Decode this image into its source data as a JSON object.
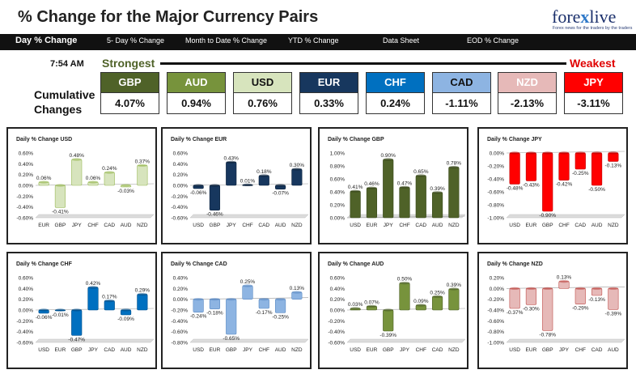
{
  "header": {
    "title": "% Change for the Major Currency Pairs",
    "logo_a": "fore",
    "logo_x": "x",
    "logo_b": "live",
    "logo_tagline": "Forex news for the traders by the traders"
  },
  "nav": {
    "items": [
      "Day % Change",
      "5- Day % Change",
      "Month to Date % Change",
      "YTD % Change",
      "Data Sheet",
      "EOD % Change"
    ]
  },
  "summary": {
    "time": "7:54 AM",
    "strongest": "Strongest",
    "weakest": "Weakest",
    "cumulative_label_1": "Cumulative",
    "cumulative_label_2": "Changes",
    "currencies": [
      {
        "name": "GBP",
        "value": "4.07%",
        "bg": "#4f6228",
        "fg": "#ffffff"
      },
      {
        "name": "AUD",
        "value": "0.94%",
        "bg": "#77933c",
        "fg": "#ffffff"
      },
      {
        "name": "USD",
        "value": "0.76%",
        "bg": "#d7e4bd",
        "fg": "#111111"
      },
      {
        "name": "EUR",
        "value": "0.33%",
        "bg": "#17375e",
        "fg": "#ffffff"
      },
      {
        "name": "CHF",
        "value": "0.24%",
        "bg": "#0070c0",
        "fg": "#ffffff"
      },
      {
        "name": "CAD",
        "value": "-1.11%",
        "bg": "#8db4e2",
        "fg": "#111111"
      },
      {
        "name": "NZD",
        "value": "-2.13%",
        "bg": "#e6b9b8",
        "fg": "#ffffff"
      },
      {
        "name": "JPY",
        "value": "-3.11%",
        "bg": "#ff0000",
        "fg": "#ffffff"
      }
    ]
  },
  "chart_data": [
    {
      "type": "bar",
      "title": "Daily % Change USD",
      "categories": [
        "EUR",
        "GBP",
        "JPY",
        "CHF",
        "CAD",
        "AUD",
        "NZD"
      ],
      "values": [
        0.06,
        -0.41,
        0.48,
        0.06,
        0.24,
        -0.03,
        0.37
      ],
      "ylim": [
        -0.6,
        0.6
      ],
      "yticks": [
        "0.60%",
        "0.40%",
        "0.20%",
        "0.00%",
        "-0.20%",
        "-0.40%",
        "-0.60%"
      ],
      "labels": [
        "0.06%",
        "-0.41%",
        "0.48%",
        "0.06%",
        "0.24%",
        "-0.03%",
        "0.37%"
      ],
      "color": "#d7e4bd",
      "stroke": "#9bbb59"
    },
    {
      "type": "bar",
      "title": "Daily % Change EUR",
      "categories": [
        "USD",
        "GBP",
        "JPY",
        "CHF",
        "CAD",
        "AUD",
        "NZD"
      ],
      "values": [
        -0.06,
        -0.46,
        0.43,
        0.01,
        0.18,
        -0.07,
        0.3
      ],
      "ylim": [
        -0.6,
        0.6
      ],
      "yticks": [
        "0.60%",
        "0.40%",
        "0.20%",
        "0.00%",
        "-0.20%",
        "-0.40%",
        "-0.60%"
      ],
      "labels": [
        "-0.06%",
        "-0.46%",
        "0.43%",
        "0.01%",
        "0.18%",
        "-0.07%",
        "0.30%"
      ],
      "color": "#17375e",
      "stroke": "#0f243e"
    },
    {
      "type": "bar",
      "title": "Daily % Change GBP",
      "categories": [
        "USD",
        "EUR",
        "JPY",
        "CHF",
        "CAD",
        "AUD",
        "NZD"
      ],
      "values": [
        0.41,
        0.46,
        0.9,
        0.47,
        0.65,
        0.39,
        0.78
      ],
      "ylim": [
        0,
        1.0
      ],
      "yticks": [
        "1.00%",
        "0.80%",
        "0.60%",
        "0.40%",
        "0.20%",
        "0.00%"
      ],
      "labels": [
        "0.41%",
        "0.46%",
        "0.90%",
        "0.47%",
        "0.65%",
        "0.39%",
        "0.78%"
      ],
      "color": "#4f6228",
      "stroke": "#3a4a1d"
    },
    {
      "type": "bar",
      "title": "Daily % Change JPY",
      "categories": [
        "USD",
        "EUR",
        "GBP",
        "CHF",
        "CAD",
        "AUD",
        "NZD"
      ],
      "values": [
        -0.48,
        -0.43,
        -0.9,
        -0.42,
        -0.25,
        -0.5,
        -0.13
      ],
      "ylim": [
        -1.0,
        0
      ],
      "yticks": [
        "0.00%",
        "-0.20%",
        "-0.40%",
        "-0.60%",
        "-0.80%",
        "-1.00%"
      ],
      "labels": [
        "-0.48%",
        "-0.43%",
        "-0.90%",
        "-0.42%",
        "-0.25%",
        "-0.50%",
        "-0.13%"
      ],
      "color": "#ff0000",
      "stroke": "#c00000"
    },
    {
      "type": "bar",
      "title": "Daily % Change CHF",
      "categories": [
        "USD",
        "EUR",
        "GBP",
        "JPY",
        "CAD",
        "AUD",
        "NZD"
      ],
      "values": [
        -0.06,
        -0.01,
        -0.47,
        0.42,
        0.17,
        -0.09,
        0.29
      ],
      "ylim": [
        -0.6,
        0.6
      ],
      "yticks": [
        "0.60%",
        "0.40%",
        "0.20%",
        "0.00%",
        "-0.20%",
        "-0.40%",
        "-0.60%"
      ],
      "labels": [
        "-0.06%",
        "-0.01%",
        "-0.47%",
        "0.42%",
        "0.17%",
        "-0.09%",
        "0.29%"
      ],
      "color": "#0070c0",
      "stroke": "#004f8a"
    },
    {
      "type": "bar",
      "title": "Daily % Change CAD",
      "categories": [
        "USD",
        "EUR",
        "GBP",
        "JPY",
        "CHF",
        "AUD",
        "NZD"
      ],
      "values": [
        -0.24,
        -0.18,
        -0.65,
        0.25,
        -0.17,
        -0.25,
        0.13
      ],
      "ylim": [
        -0.8,
        0.4
      ],
      "yticks": [
        "0.40%",
        "0.20%",
        "0.00%",
        "-0.20%",
        "-0.40%",
        "-0.60%",
        "-0.80%"
      ],
      "labels": [
        "-0.24%",
        "-0.18%",
        "-0.65%",
        "0.25%",
        "-0.17%",
        "-0.25%",
        "0.13%"
      ],
      "color": "#8db4e2",
      "stroke": "#5b8bc4"
    },
    {
      "type": "bar",
      "title": "Daily % Change AUD",
      "categories": [
        "USD",
        "EUR",
        "GBP",
        "JPY",
        "CHF",
        "CAD",
        "NZD"
      ],
      "values": [
        0.03,
        0.07,
        -0.39,
        0.5,
        0.09,
        0.25,
        0.39
      ],
      "ylim": [
        -0.6,
        0.6
      ],
      "yticks": [
        "0.60%",
        "0.40%",
        "0.20%",
        "0.00%",
        "-0.20%",
        "-0.40%",
        "-0.60%"
      ],
      "labels": [
        "0.03%",
        "0.07%",
        "-0.39%",
        "0.50%",
        "0.09%",
        "0.25%",
        "0.39%"
      ],
      "color": "#77933c",
      "stroke": "#4f6228"
    },
    {
      "type": "bar",
      "title": "Daily % Change NZD",
      "categories": [
        "USD",
        "EUR",
        "GBP",
        "JPY",
        "CHF",
        "CAD",
        "AUD"
      ],
      "values": [
        -0.37,
        -0.3,
        -0.78,
        0.13,
        -0.29,
        -0.13,
        -0.39
      ],
      "ylim": [
        -1.0,
        0.2
      ],
      "yticks": [
        "0.20%",
        "0.00%",
        "-0.20%",
        "-0.40%",
        "-0.60%",
        "-0.80%",
        "-1.00%"
      ],
      "labels": [
        "-0.37%",
        "-0.30%",
        "-0.78%",
        "0.13%",
        "-0.29%",
        "-0.13%",
        "-0.39%"
      ],
      "color": "#e6b9b8",
      "stroke": "#c0504d"
    }
  ]
}
